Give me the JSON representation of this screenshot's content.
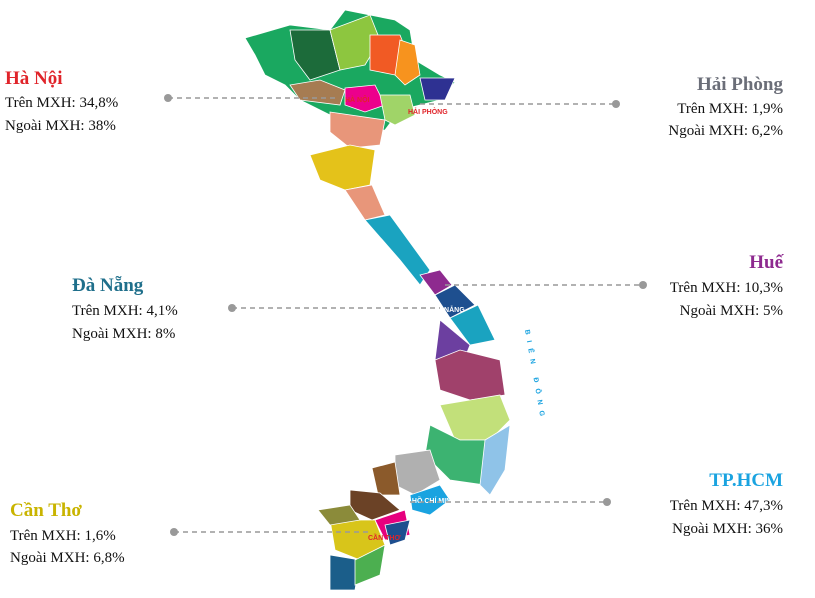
{
  "cities": [
    {
      "name": "Hà Nội",
      "online": "Trên MXH: 34,8%",
      "offline": "Ngoài MXH: 38%"
    },
    {
      "name": "Hải Phòng",
      "online": "Trên MXH: 1,9%",
      "offline": "Ngoài MXH: 6,2%"
    },
    {
      "name": "Huế",
      "online": "Trên MXH: 10,3%",
      "offline": "Ngoài MXH: 5%"
    },
    {
      "name": "Đà Nẵng",
      "online": "Trên MXH: 4,1%",
      "offline": "Ngoài MXH: 8%"
    },
    {
      "name": "TP.HCM",
      "online": "Trên MXH: 47,3%",
      "offline": "Ngoài MXH: 36%"
    },
    {
      "name": "Cần Thơ",
      "online": "Trên MXH: 1,6%",
      "offline": "Ngoài MXH: 6,8%"
    }
  ],
  "map_labels": [
    "HÀ NỘI",
    "HẢI PHÒNG",
    "ĐÀ NẴNG",
    "TP. HỒ CHÍ MINH",
    "CẦN THƠ",
    "BIỂN ĐÔNG"
  ]
}
